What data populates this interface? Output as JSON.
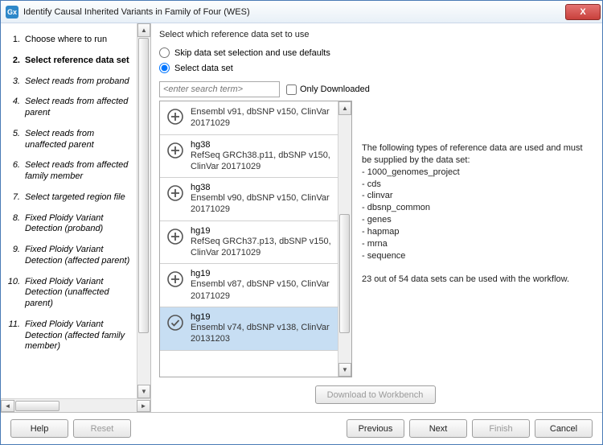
{
  "window": {
    "icon_text": "Gx",
    "title": "Identify Causal Inherited Variants in Family of Four (WES)",
    "close_glyph": "X"
  },
  "sidebar": {
    "steps": [
      {
        "num": "1.",
        "label": "Choose where to run",
        "style": "normal"
      },
      {
        "num": "2.",
        "label": "Select reference data set",
        "style": "bold"
      },
      {
        "num": "3.",
        "label": "Select reads from proband",
        "style": "italic"
      },
      {
        "num": "4.",
        "label": "Select reads from affected parent",
        "style": "italic"
      },
      {
        "num": "5.",
        "label": "Select reads from unaffected parent",
        "style": "italic"
      },
      {
        "num": "6.",
        "label": "Select reads from affected family member",
        "style": "italic"
      },
      {
        "num": "7.",
        "label": "Select targeted region file",
        "style": "italic"
      },
      {
        "num": "8.",
        "label": "Fixed Ploidy Variant Detection (proband)",
        "style": "italic"
      },
      {
        "num": "9.",
        "label": "Fixed Ploidy Variant Detection (affected parent)",
        "style": "italic"
      },
      {
        "num": "10.",
        "label": "Fixed Ploidy Variant Detection (unaffected parent)",
        "style": "italic"
      },
      {
        "num": "11.",
        "label": "Fixed Ploidy Variant Detection (affected family member)",
        "style": "italic"
      }
    ]
  },
  "main": {
    "heading": "Select which reference data set to use",
    "radio_skip": "Skip data set selection and use defaults",
    "radio_select": "Select data set",
    "search_placeholder": "<enter search term>",
    "only_downloaded": "Only Downloaded",
    "datasets": [
      {
        "name": "",
        "sub": "Ensembl v91, dbSNP v150, ClinVar 20171029",
        "selected": false,
        "icon": "plus"
      },
      {
        "name": "hg38",
        "sub": "RefSeq GRCh38.p11, dbSNP v150, ClinVar 20171029",
        "selected": false,
        "icon": "plus"
      },
      {
        "name": "hg38",
        "sub": "Ensembl v90, dbSNP v150, ClinVar 20171029",
        "selected": false,
        "icon": "plus"
      },
      {
        "name": "hg19",
        "sub": "RefSeq GRCh37.p13, dbSNP v150, ClinVar 20171029",
        "selected": false,
        "icon": "plus"
      },
      {
        "name": "hg19",
        "sub": "Ensembl v87, dbSNP v150, ClinVar 20171029",
        "selected": false,
        "icon": "plus"
      },
      {
        "name": "hg19",
        "sub": "Ensembl v74, dbSNP v138, ClinVar 20131203",
        "selected": true,
        "icon": "check"
      }
    ],
    "info_intro": "The following types of reference data are used and must be supplied by the data set:",
    "info_types": [
      "1000_genomes_project",
      "cds",
      "clinvar",
      "dbsnp_common",
      "genes",
      "hapmap",
      "mrna",
      "sequence"
    ],
    "info_summary": "23 out of 54 data sets can be used with the workflow.",
    "download_btn": "Download to Workbench"
  },
  "footer": {
    "help": "Help",
    "reset": "Reset",
    "previous": "Previous",
    "next": "Next",
    "finish": "Finish",
    "cancel": "Cancel"
  },
  "scroll_glyphs": {
    "left": "◄",
    "right": "►",
    "up": "▲",
    "down": "▼"
  }
}
